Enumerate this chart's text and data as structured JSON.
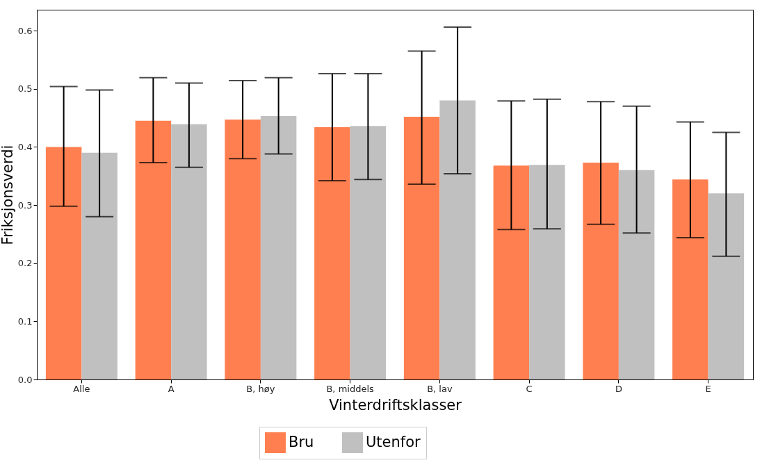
{
  "chart_data": {
    "type": "bar",
    "xlabel": "Vinterdriftsklasser",
    "ylabel": "Friksjonsverdi",
    "categories": [
      "Alle",
      "A",
      "B, høy",
      "B, middels",
      "B, lav",
      "C",
      "D",
      "E"
    ],
    "ylim": [
      0,
      0.636
    ],
    "yticks": [
      {
        "value": 0,
        "label": "0.0"
      },
      0.1,
      0.2,
      0.3,
      0.4,
      0.5,
      0.6
    ],
    "grid": false,
    "legend": "bottom",
    "series": [
      {
        "name": "Bru",
        "color": "#ff7f50",
        "values": [
          0.4,
          0.445,
          0.447,
          0.434,
          0.452,
          0.368,
          0.373,
          0.344
        ],
        "errors": [
          [
            0.298,
            0.504
          ],
          [
            0.373,
            0.519
          ],
          [
            0.38,
            0.514
          ],
          [
            0.342,
            0.526
          ],
          [
            0.336,
            0.565
          ],
          [
            0.258,
            0.479
          ],
          [
            0.267,
            0.478
          ],
          [
            0.244,
            0.443
          ]
        ]
      },
      {
        "name": "Utenfor",
        "color": "#c0c0c0",
        "values": [
          0.39,
          0.439,
          0.453,
          0.436,
          0.48,
          0.369,
          0.36,
          0.32
        ],
        "errors": [
          [
            0.28,
            0.498
          ],
          [
            0.365,
            0.51
          ],
          [
            0.388,
            0.519
          ],
          [
            0.344,
            0.526
          ],
          [
            0.354,
            0.606
          ],
          [
            0.259,
            0.482
          ],
          [
            0.252,
            0.47
          ],
          [
            0.212,
            0.425
          ]
        ]
      }
    ]
  }
}
